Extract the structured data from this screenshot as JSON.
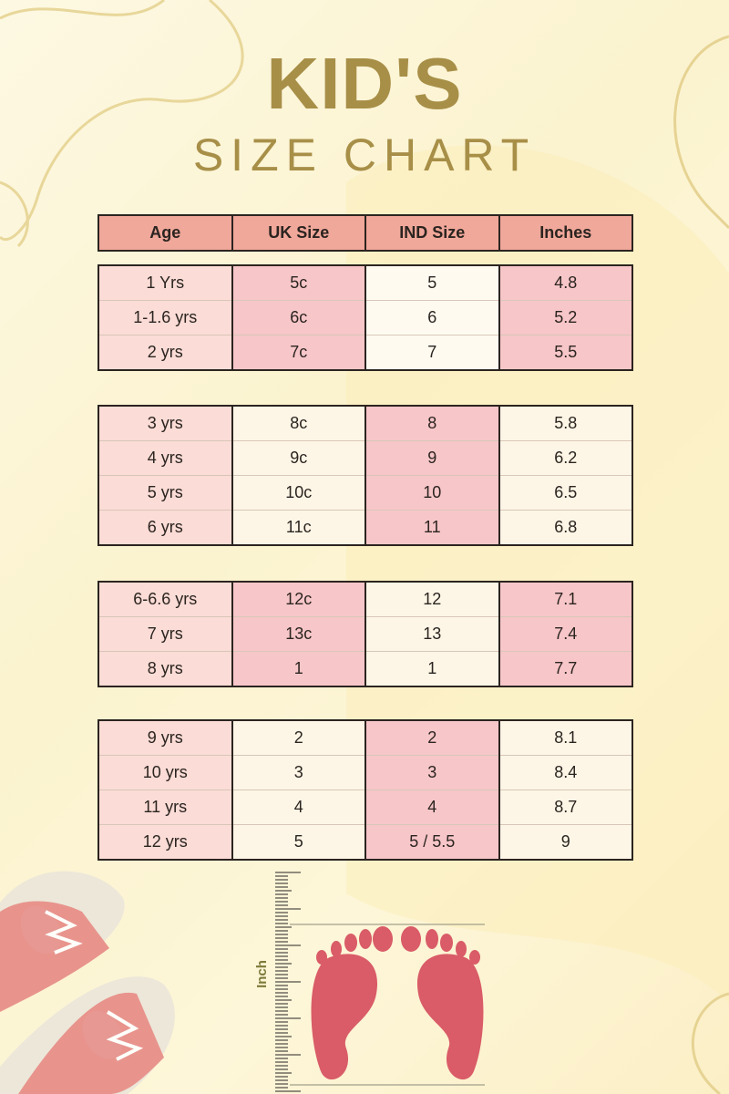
{
  "title": {
    "line1": "KID'S",
    "line2": "SIZE  CHART"
  },
  "columns": [
    "Age",
    "UK Size",
    "IND Size",
    "Inches"
  ],
  "groups": [
    {
      "rows": [
        [
          "1 Yrs",
          "5c",
          "5",
          "4.8"
        ],
        [
          "1-1.6 yrs",
          "6c",
          "6",
          "5.2"
        ],
        [
          "2 yrs",
          "7c",
          "7",
          "5.5"
        ]
      ]
    },
    {
      "rows": [
        [
          "3 yrs",
          "8c",
          "8",
          "5.8"
        ],
        [
          "4 yrs",
          "9c",
          "9",
          "6.2"
        ],
        [
          "5 yrs",
          "10c",
          "10",
          "6.5"
        ],
        [
          "6 yrs",
          "11c",
          "11",
          "6.8"
        ]
      ]
    },
    {
      "rows": [
        [
          "6-6.6 yrs",
          "12c",
          "12",
          "7.1"
        ],
        [
          "7 yrs",
          "13c",
          "13",
          "7.4"
        ],
        [
          "8 yrs",
          "1",
          "1",
          "7.7"
        ]
      ]
    },
    {
      "rows": [
        [
          "9 yrs",
          "2",
          "2",
          "8.1"
        ],
        [
          "10 yrs",
          "3",
          "3",
          "8.4"
        ],
        [
          "11 yrs",
          "4",
          "4",
          "8.7"
        ],
        [
          "12 yrs",
          "5",
          "5 / 5.5",
          "9"
        ]
      ]
    }
  ],
  "illustration": {
    "ruler_label": "Inch",
    "icons": [
      "shoes-icon",
      "ruler-icon",
      "footprints-icon"
    ]
  },
  "colors": {
    "header": "#f0a89a",
    "pink_cell": "#f7c6c8",
    "age_cell": "#fbdcd6",
    "title": "#a88f48",
    "foot": "#d95c68"
  }
}
